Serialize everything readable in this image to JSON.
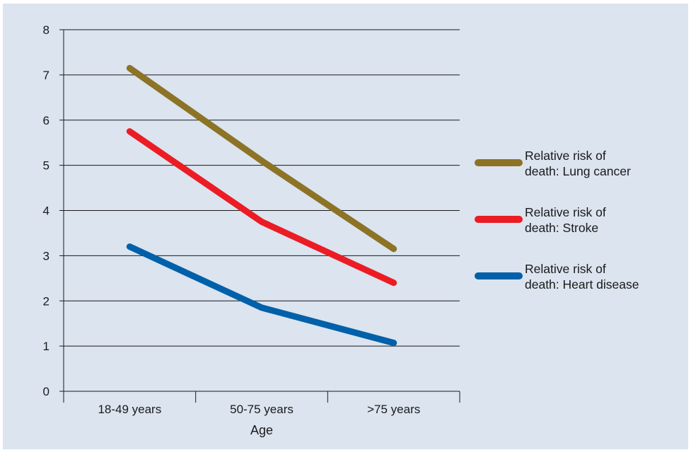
{
  "chart_data": {
    "type": "line",
    "title": "",
    "xlabel": "Age",
    "ylabel": "",
    "categories": [
      "18-49 years",
      "50-75 years",
      ">75 years"
    ],
    "ylim": [
      0,
      8
    ],
    "yticks": [
      0,
      1,
      2,
      3,
      4,
      5,
      6,
      7,
      8
    ],
    "grid": true,
    "legend_position": "right",
    "series": [
      {
        "name_lines": [
          "Relative risk of",
          "death: Lung cancer"
        ],
        "color": "#8c7325",
        "values": [
          7.15,
          5.1,
          3.15
        ]
      },
      {
        "name_lines": [
          "Relative risk of",
          "death: Stroke"
        ],
        "color": "#ec1c24",
        "values": [
          5.75,
          3.75,
          2.4
        ]
      },
      {
        "name_lines": [
          "Relative risk of",
          "death: Heart disease"
        ],
        "color": "#0060a9",
        "values": [
          3.2,
          1.85,
          1.07
        ]
      }
    ]
  }
}
